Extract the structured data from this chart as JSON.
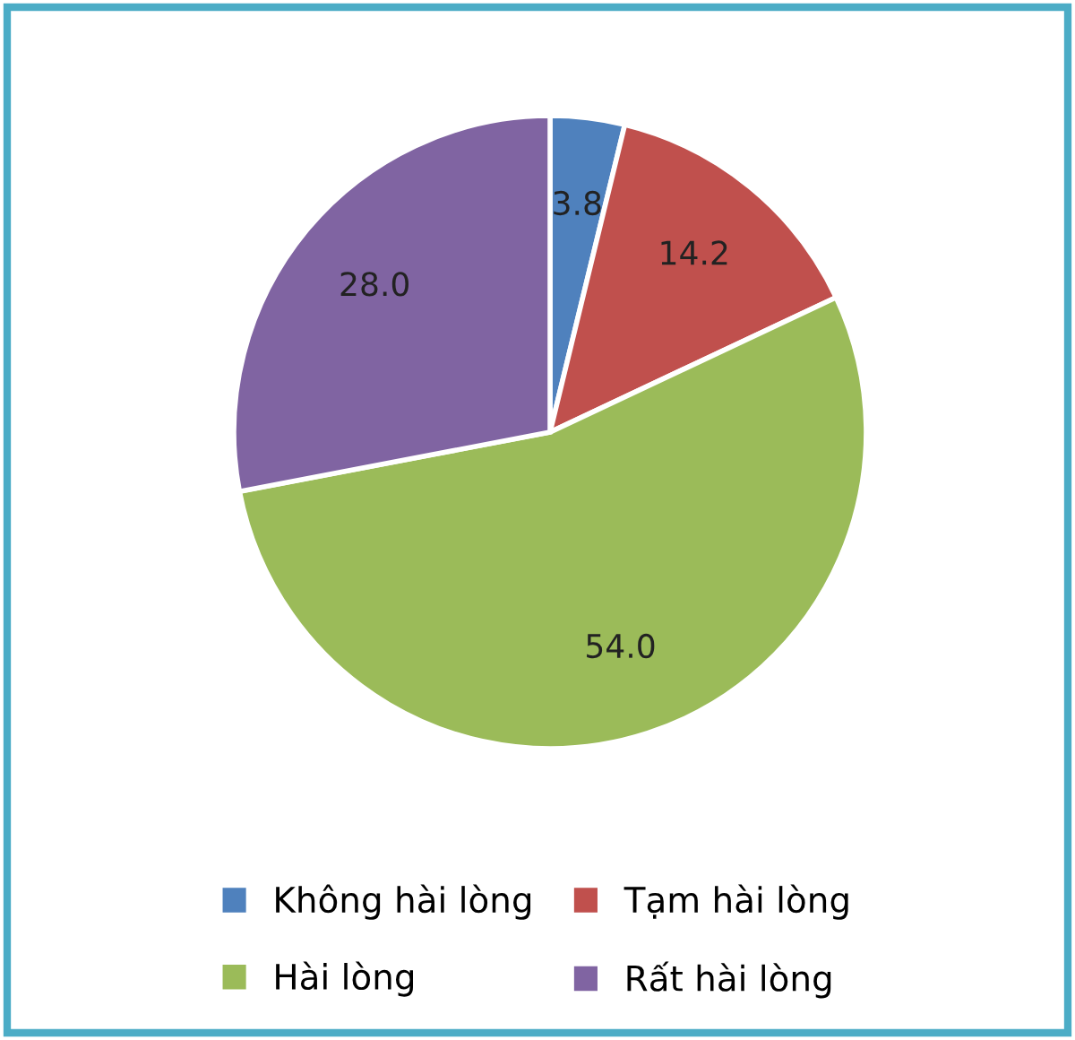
{
  "chart_data": {
    "type": "pie",
    "categories": [
      "Không hài lòng",
      "Tạm hài lòng",
      "Hài lòng",
      "Rất hài lòng"
    ],
    "values": [
      3.8,
      14.2,
      54.0,
      28.0
    ],
    "colors": [
      "#4f81bd",
      "#c0504d",
      "#9bbb59",
      "#8064a2"
    ],
    "value_labels": [
      "3.8",
      "14.2",
      "54.0",
      "28.0"
    ],
    "legend": "bottom"
  }
}
